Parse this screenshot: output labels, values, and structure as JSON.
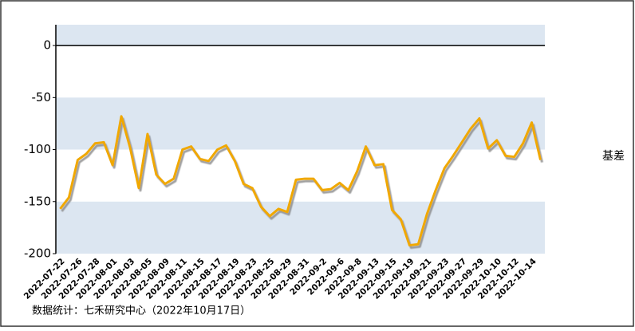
{
  "chart_data": {
    "type": "line",
    "categories": [
      "2022-07-22",
      null,
      "2022-07-26",
      null,
      "2022-07-28",
      null,
      "2022-08-01",
      null,
      "2022-08-03",
      null,
      "2022-08-05",
      null,
      "2022-08-09",
      null,
      "2022-08-11",
      null,
      "2022-08-15",
      null,
      "2022-08-17",
      null,
      "2022-08-19",
      null,
      "2022-08-23",
      null,
      "2022-08-25",
      null,
      "2022-08-29",
      null,
      "2022-08-31",
      null,
      "2022-09-2",
      null,
      "2022-09-6",
      null,
      "2022-09-8",
      null,
      "2022-09-13",
      null,
      "2022-09-15",
      null,
      "2022-09-19",
      null,
      "2022-09-21",
      null,
      "2022-09-23",
      null,
      "2022-09-27",
      null,
      "2022-09-29",
      null,
      "2022-10-10",
      null,
      "2022-10-12",
      null,
      "2022-10-14",
      null
    ],
    "series": [
      {
        "name": "基差",
        "color": "#f0a800",
        "values": [
          -157,
          -146,
          -110,
          -104,
          -94,
          -93,
          -115,
          -68,
          -98,
          -137,
          -85,
          -124,
          -133,
          -128,
          -100,
          -97,
          -109,
          -111,
          -100,
          -96,
          -111,
          -133,
          -137,
          -155,
          -164,
          -157,
          -160,
          -129,
          -128,
          -128,
          -139,
          -138,
          -132,
          -139,
          -121,
          -97,
          -115,
          -114,
          -158,
          -167,
          -192,
          -191,
          -162,
          -139,
          -118,
          -106,
          -93,
          -80,
          -70,
          -99,
          -91,
          -106,
          -107,
          -94,
          -74,
          -110
        ]
      }
    ],
    "ylim": [
      -200,
      20
    ],
    "yticks": [
      0,
      -50,
      -100,
      -150,
      -200
    ],
    "legend": "right",
    "source": "数据统计：七禾研究中心（2022年10月17日）"
  }
}
